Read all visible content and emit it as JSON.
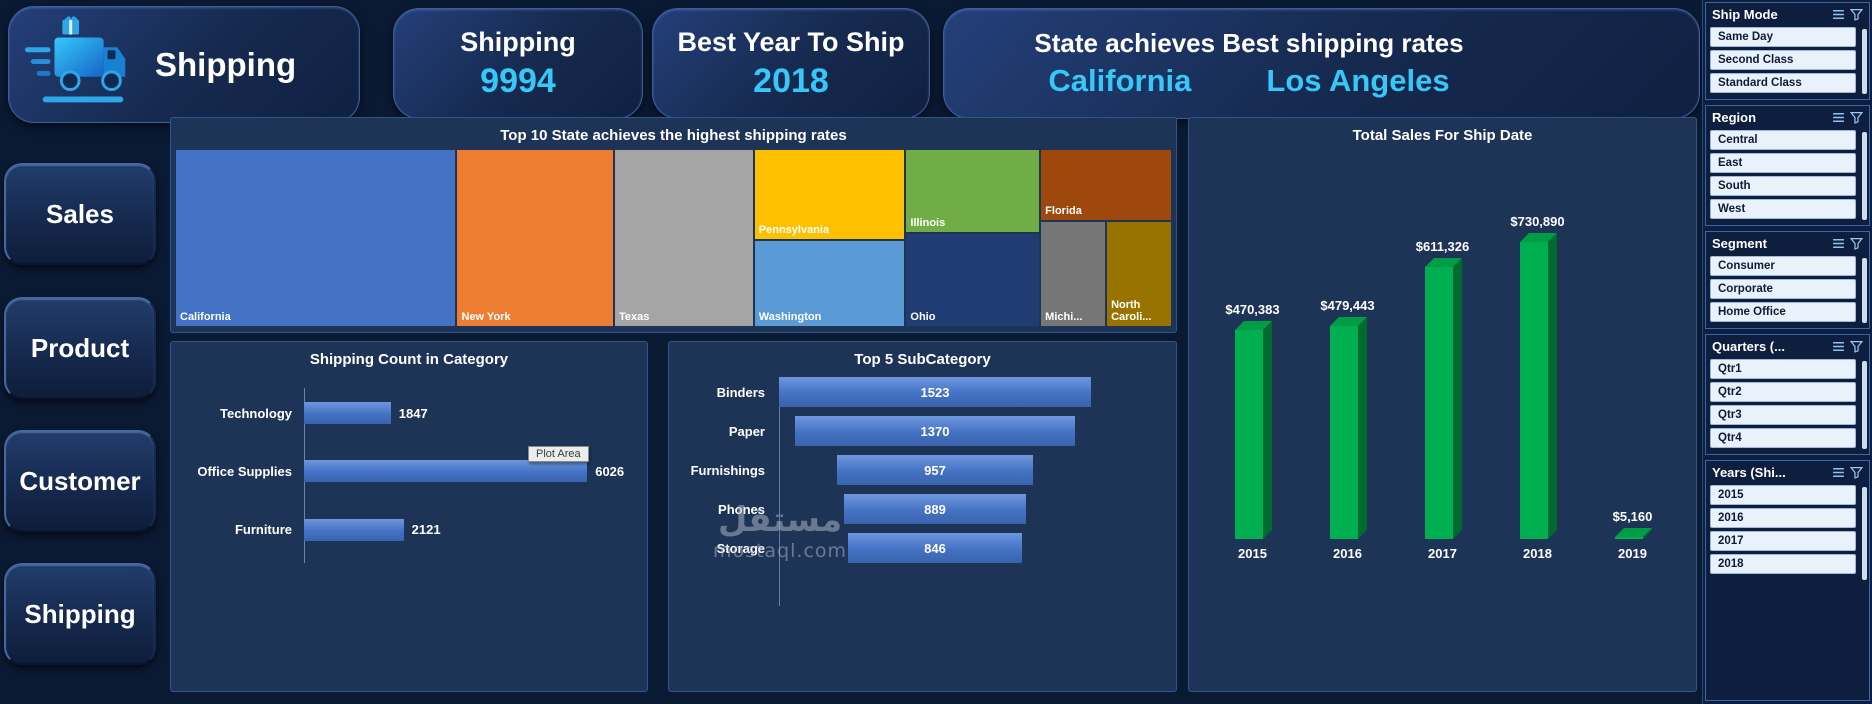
{
  "colors": {
    "accent_cyan": "#35c8f8",
    "panel_bg": "#1d3457",
    "bar_blue": "#4472c4",
    "column_green": "#00b050"
  },
  "header": {
    "logo_title": "Shipping",
    "kpis": [
      {
        "label": "Shipping",
        "value": "9994"
      },
      {
        "label": "Best Year To Ship",
        "value": "2018"
      },
      {
        "label": "State achieves Best shipping rates",
        "state": "California",
        "city": "Los Angeles"
      }
    ]
  },
  "nav": {
    "items": [
      {
        "label": "Sales"
      },
      {
        "label": "Product"
      },
      {
        "label": "Customer"
      },
      {
        "label": "Shipping"
      }
    ]
  },
  "filters": {
    "sections": [
      {
        "title": "Ship Mode",
        "options": [
          "Same Day",
          "Second Class",
          "Standard Class"
        ]
      },
      {
        "title": "Region",
        "options": [
          "Central",
          "East",
          "South",
          "West"
        ]
      },
      {
        "title": "Segment",
        "options": [
          "Consumer",
          "Corporate",
          "Home Office"
        ]
      },
      {
        "title": "Quarters (...",
        "options": [
          "Qtr1",
          "Qtr2",
          "Qtr3",
          "Qtr4"
        ]
      },
      {
        "title": "Years (Shi...",
        "options": [
          "2015",
          "2016",
          "2017",
          "2018"
        ]
      }
    ]
  },
  "watermark": {
    "line1": "مستقل",
    "line2": "mostaql.com"
  },
  "tooltip": {
    "text": "Plot Area"
  },
  "chart_data": [
    {
      "id": "state_treemap",
      "type": "treemap",
      "title": "Top 10 State achieves the highest shipping rates",
      "tiles": [
        {
          "label": "California",
          "color": "#4472c4"
        },
        {
          "label": "New York",
          "color": "#ed7d31"
        },
        {
          "label": "Texas",
          "color": "#a5a5a5"
        },
        {
          "label": "Pennsylvania",
          "color": "#ffc000"
        },
        {
          "label": "Washington",
          "color": "#5b9bd5"
        },
        {
          "label": "Illinois",
          "color": "#70ad47"
        },
        {
          "label": "Ohio",
          "color": "#1f3d73"
        },
        {
          "label": "Florida",
          "color": "#9e480e"
        },
        {
          "label": "Michi...",
          "color": "#767676"
        },
        {
          "label": "North Caroli...",
          "color": "#997300"
        }
      ]
    },
    {
      "id": "category_bar",
      "type": "bar",
      "orientation": "horizontal",
      "title": "Shipping Count in Category",
      "categories": [
        "Technology",
        "Office Supplies",
        "Furniture"
      ],
      "values": [
        1847,
        6026,
        2121
      ],
      "value_labels": [
        "1847",
        "6026",
        "2121"
      ],
      "xmax": 7000,
      "bar_color": "#4472c4"
    },
    {
      "id": "subcategory_funnel",
      "type": "funnel",
      "title": "Top 5 SubCategory",
      "categories": [
        "Binders",
        "Paper",
        "Furnishings",
        "Phones",
        "Storage"
      ],
      "values": [
        1523,
        1370,
        957,
        889,
        846
      ],
      "value_labels": [
        "1523",
        "1370",
        "957",
        "889",
        "846"
      ],
      "bar_color": "#4472c4"
    },
    {
      "id": "sales_by_year",
      "type": "bar",
      "orientation": "vertical",
      "title": "Total Sales For Ship Date",
      "categories": [
        "2015",
        "2016",
        "2017",
        "2018",
        "2019"
      ],
      "values": [
        470383,
        479443,
        611326,
        730890,
        5160
      ],
      "value_labels": [
        "$470,383",
        "$479,443",
        "$611,326",
        "$730,890",
        "$5,160"
      ],
      "ylim": [
        0,
        730890
      ],
      "bar_color": "#00b050"
    }
  ]
}
